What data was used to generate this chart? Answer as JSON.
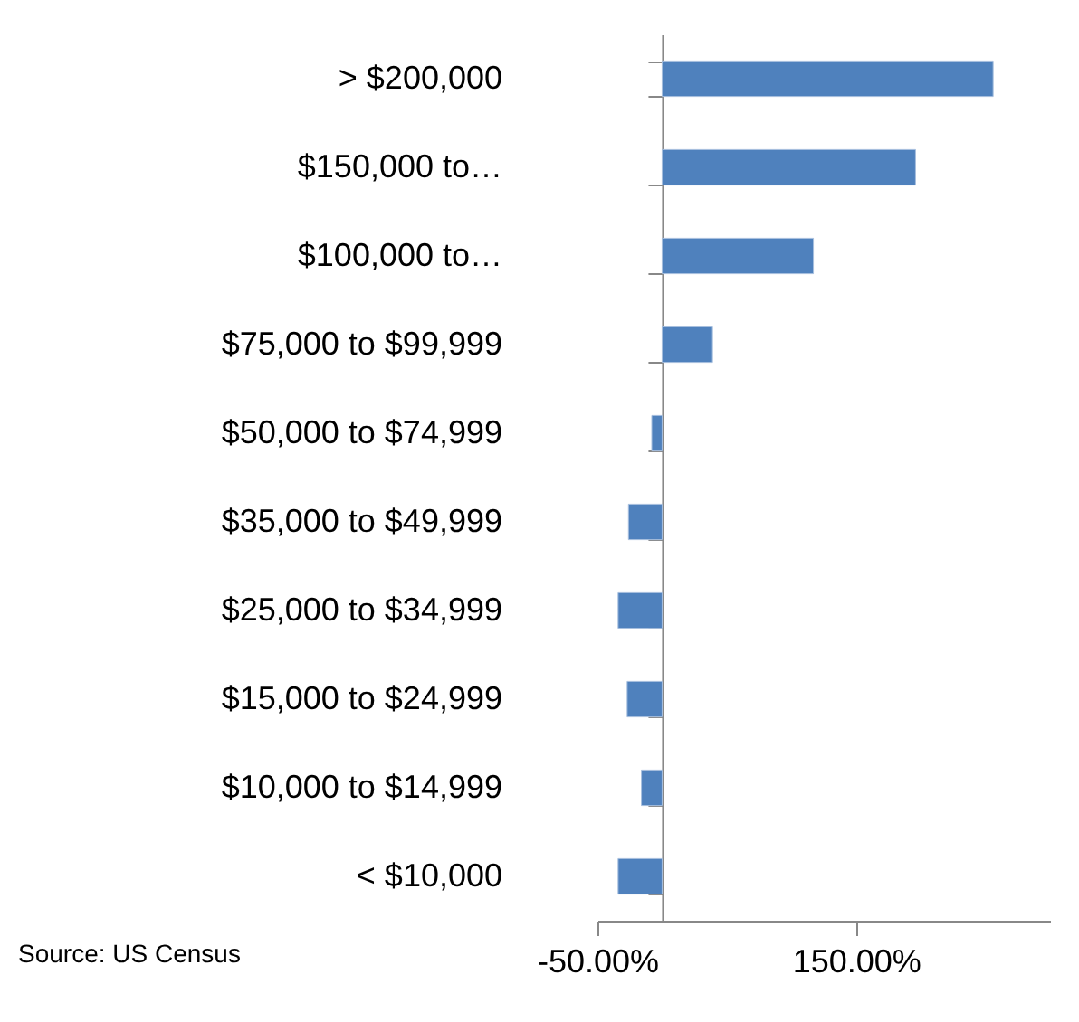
{
  "chart_data": {
    "type": "bar",
    "orientation": "horizontal",
    "categories": [
      "> $200,000",
      "$150,000 to…",
      "$100,000 to…",
      "$75,000 to $99,999",
      "$50,000 to $74,999",
      "$35,000 to $49,999",
      "$25,000 to $34,999",
      "$15,000 to $24,999",
      "$10,000 to $14,999",
      "< $10,000"
    ],
    "values": [
      256,
      196,
      117,
      39,
      -8,
      -26,
      -34,
      -27,
      -16,
      -34
    ],
    "color": "#4f81bd",
    "xlim": [
      -50,
      300
    ],
    "xticks": [
      {
        "value": -50,
        "label": "-50.00%"
      },
      {
        "value": 150,
        "label": "150.00%"
      }
    ],
    "grid": false,
    "annotations": [
      "Source: US Census"
    ]
  }
}
